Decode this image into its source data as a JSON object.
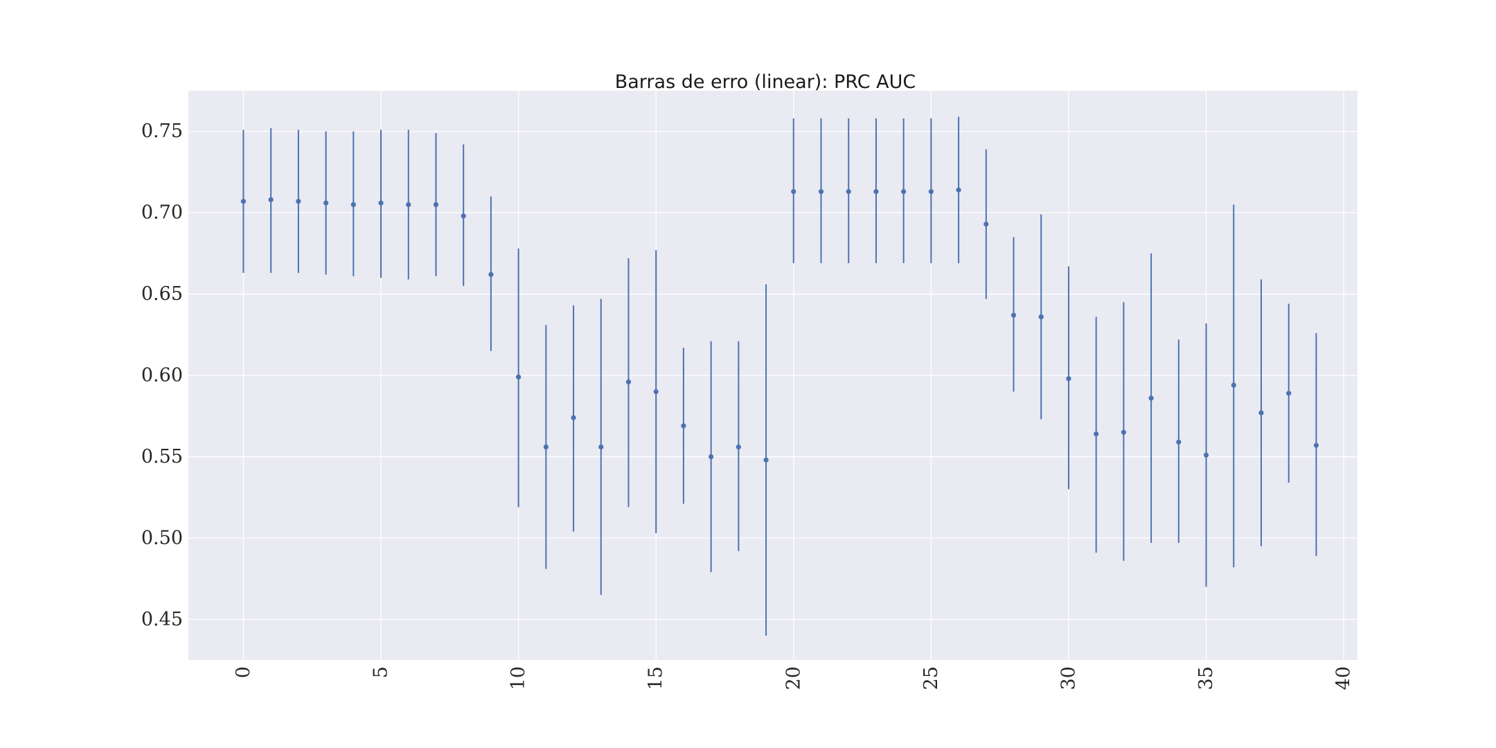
{
  "chart_data": {
    "type": "errorbar",
    "title": "Barras de erro (linear): PRC AUC",
    "xlabel": "",
    "ylabel": "",
    "xlim": [
      -2,
      40.5
    ],
    "ylim": [
      0.425,
      0.775
    ],
    "x_ticks": [
      0,
      5,
      10,
      15,
      20,
      25,
      30,
      35,
      40
    ],
    "x_tick_labels": [
      "0",
      "5",
      "10",
      "15",
      "20",
      "25",
      "30",
      "35",
      "40"
    ],
    "y_ticks": [
      0.45,
      0.5,
      0.55,
      0.6,
      0.65,
      0.7,
      0.75
    ],
    "y_tick_labels": [
      "0.45",
      "0.50",
      "0.55",
      "0.60",
      "0.65",
      "0.70",
      "0.75"
    ],
    "grid": true,
    "color": "#4c72b0",
    "background": "#eaeaf2",
    "points": [
      {
        "x": 0,
        "y": 0.707,
        "lo": 0.663,
        "hi": 0.751
      },
      {
        "x": 1,
        "y": 0.708,
        "lo": 0.663,
        "hi": 0.752
      },
      {
        "x": 2,
        "y": 0.707,
        "lo": 0.663,
        "hi": 0.751
      },
      {
        "x": 3,
        "y": 0.706,
        "lo": 0.662,
        "hi": 0.75
      },
      {
        "x": 4,
        "y": 0.705,
        "lo": 0.661,
        "hi": 0.75
      },
      {
        "x": 5,
        "y": 0.706,
        "lo": 0.66,
        "hi": 0.751
      },
      {
        "x": 6,
        "y": 0.705,
        "lo": 0.659,
        "hi": 0.751
      },
      {
        "x": 7,
        "y": 0.705,
        "lo": 0.661,
        "hi": 0.749
      },
      {
        "x": 8,
        "y": 0.698,
        "lo": 0.655,
        "hi": 0.742
      },
      {
        "x": 9,
        "y": 0.662,
        "lo": 0.615,
        "hi": 0.71
      },
      {
        "x": 10,
        "y": 0.599,
        "lo": 0.519,
        "hi": 0.678
      },
      {
        "x": 11,
        "y": 0.556,
        "lo": 0.481,
        "hi": 0.631
      },
      {
        "x": 12,
        "y": 0.574,
        "lo": 0.504,
        "hi": 0.643
      },
      {
        "x": 13,
        "y": 0.556,
        "lo": 0.465,
        "hi": 0.647
      },
      {
        "x": 14,
        "y": 0.596,
        "lo": 0.519,
        "hi": 0.672
      },
      {
        "x": 15,
        "y": 0.59,
        "lo": 0.503,
        "hi": 0.677
      },
      {
        "x": 16,
        "y": 0.569,
        "lo": 0.521,
        "hi": 0.617
      },
      {
        "x": 17,
        "y": 0.55,
        "lo": 0.479,
        "hi": 0.621
      },
      {
        "x": 18,
        "y": 0.556,
        "lo": 0.492,
        "hi": 0.621
      },
      {
        "x": 19,
        "y": 0.548,
        "lo": 0.44,
        "hi": 0.656
      },
      {
        "x": 20,
        "y": 0.713,
        "lo": 0.669,
        "hi": 0.758
      },
      {
        "x": 21,
        "y": 0.713,
        "lo": 0.669,
        "hi": 0.758
      },
      {
        "x": 22,
        "y": 0.713,
        "lo": 0.669,
        "hi": 0.758
      },
      {
        "x": 23,
        "y": 0.713,
        "lo": 0.669,
        "hi": 0.758
      },
      {
        "x": 24,
        "y": 0.713,
        "lo": 0.669,
        "hi": 0.758
      },
      {
        "x": 25,
        "y": 0.713,
        "lo": 0.669,
        "hi": 0.758
      },
      {
        "x": 26,
        "y": 0.714,
        "lo": 0.669,
        "hi": 0.759
      },
      {
        "x": 27,
        "y": 0.693,
        "lo": 0.647,
        "hi": 0.739
      },
      {
        "x": 28,
        "y": 0.637,
        "lo": 0.59,
        "hi": 0.685
      },
      {
        "x": 29,
        "y": 0.636,
        "lo": 0.573,
        "hi": 0.699
      },
      {
        "x": 30,
        "y": 0.598,
        "lo": 0.53,
        "hi": 0.667
      },
      {
        "x": 31,
        "y": 0.564,
        "lo": 0.491,
        "hi": 0.636
      },
      {
        "x": 32,
        "y": 0.565,
        "lo": 0.486,
        "hi": 0.645
      },
      {
        "x": 33,
        "y": 0.586,
        "lo": 0.497,
        "hi": 0.675
      },
      {
        "x": 34,
        "y": 0.559,
        "lo": 0.497,
        "hi": 0.622
      },
      {
        "x": 35,
        "y": 0.551,
        "lo": 0.47,
        "hi": 0.632
      },
      {
        "x": 36,
        "y": 0.594,
        "lo": 0.482,
        "hi": 0.705
      },
      {
        "x": 37,
        "y": 0.577,
        "lo": 0.495,
        "hi": 0.659
      },
      {
        "x": 38,
        "y": 0.589,
        "lo": 0.534,
        "hi": 0.644
      },
      {
        "x": 39,
        "y": 0.557,
        "lo": 0.489,
        "hi": 0.626
      }
    ]
  }
}
